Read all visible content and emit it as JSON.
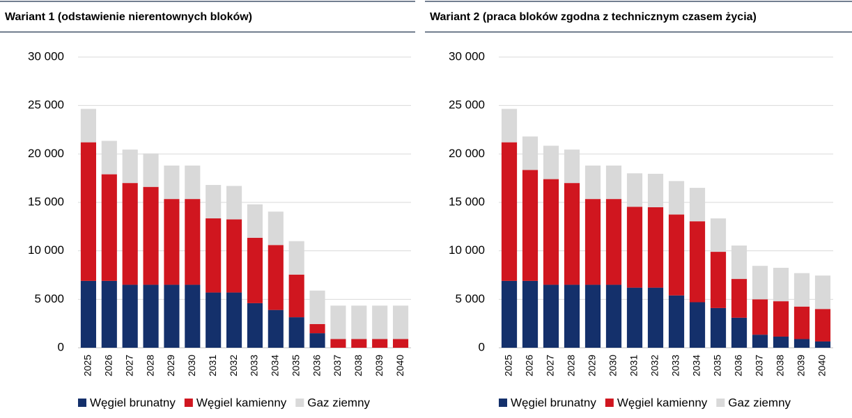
{
  "chart_data": [
    {
      "type": "bar",
      "stacked": true,
      "title": "Wariant 1 (odstawienie nierentownych bloków)",
      "categories": [
        "2025",
        "2026",
        "2027",
        "2028",
        "2029",
        "2030",
        "2031",
        "2032",
        "2033",
        "2034",
        "2035",
        "2036",
        "2037",
        "2038",
        "2039",
        "2040"
      ],
      "series": [
        {
          "name": "Węgiel brunatny",
          "color": "#14306b",
          "values": [
            6900,
            6900,
            6500,
            6500,
            6500,
            6500,
            5700,
            5700,
            4600,
            3900,
            3150,
            1500,
            0,
            0,
            0,
            0
          ]
        },
        {
          "name": "Węgiel kamienny",
          "color": "#d0161f",
          "values": [
            14300,
            11000,
            10500,
            10100,
            8850,
            8850,
            7650,
            7550,
            6750,
            6700,
            4400,
            950,
            900,
            900,
            900,
            900
          ]
        },
        {
          "name": "Gaz ziemny",
          "color": "#d9d9d9",
          "values": [
            3450,
            3450,
            3450,
            3450,
            3450,
            3450,
            3450,
            3450,
            3450,
            3450,
            3450,
            3450,
            3450,
            3450,
            3450,
            3450
          ]
        }
      ],
      "ylim": [
        0,
        30000
      ],
      "yticks": [
        0,
        {
          "value": 5000,
          "label": "5 000"
        },
        {
          "value": 10000,
          "label": "10 000"
        },
        {
          "value": 15000,
          "label": "15 000"
        },
        {
          "value": 20000,
          "label": "20 000"
        },
        {
          "value": 25000,
          "label": "25 000"
        },
        {
          "value": 30000,
          "label": "30 000"
        }
      ],
      "grid": true,
      "legend": "bottom"
    },
    {
      "type": "bar",
      "stacked": true,
      "title": "Wariant 2 (praca bloków zgodna z technicznym czasem życia)",
      "categories": [
        "2025",
        "2026",
        "2027",
        "2028",
        "2029",
        "2030",
        "2031",
        "2032",
        "2033",
        "2034",
        "2035",
        "2036",
        "2037",
        "2038",
        "2039",
        "2040"
      ],
      "series": [
        {
          "name": "Węgiel brunatny",
          "color": "#14306b",
          "values": [
            6900,
            6900,
            6500,
            6500,
            6500,
            6500,
            6200,
            6200,
            5400,
            4700,
            4100,
            3100,
            1350,
            1150,
            900,
            650
          ]
        },
        {
          "name": "Węgiel kamienny",
          "color": "#d0161f",
          "values": [
            14300,
            11450,
            10900,
            10500,
            8850,
            8850,
            8350,
            8300,
            8350,
            8350,
            5800,
            4000,
            3650,
            3650,
            3350,
            3350
          ]
        },
        {
          "name": "Gaz ziemny",
          "color": "#d9d9d9",
          "values": [
            3450,
            3450,
            3450,
            3450,
            3450,
            3450,
            3450,
            3450,
            3450,
            3450,
            3450,
            3450,
            3450,
            3450,
            3450,
            3450
          ]
        }
      ],
      "ylim": [
        0,
        30000
      ],
      "yticks": [
        0,
        {
          "value": 5000,
          "label": "5 000"
        },
        {
          "value": 10000,
          "label": "10 000"
        },
        {
          "value": 15000,
          "label": "15 000"
        },
        {
          "value": 20000,
          "label": "20 000"
        },
        {
          "value": 25000,
          "label": "25 000"
        },
        {
          "value": 30000,
          "label": "30 000"
        }
      ],
      "grid": true,
      "legend": "bottom"
    }
  ]
}
